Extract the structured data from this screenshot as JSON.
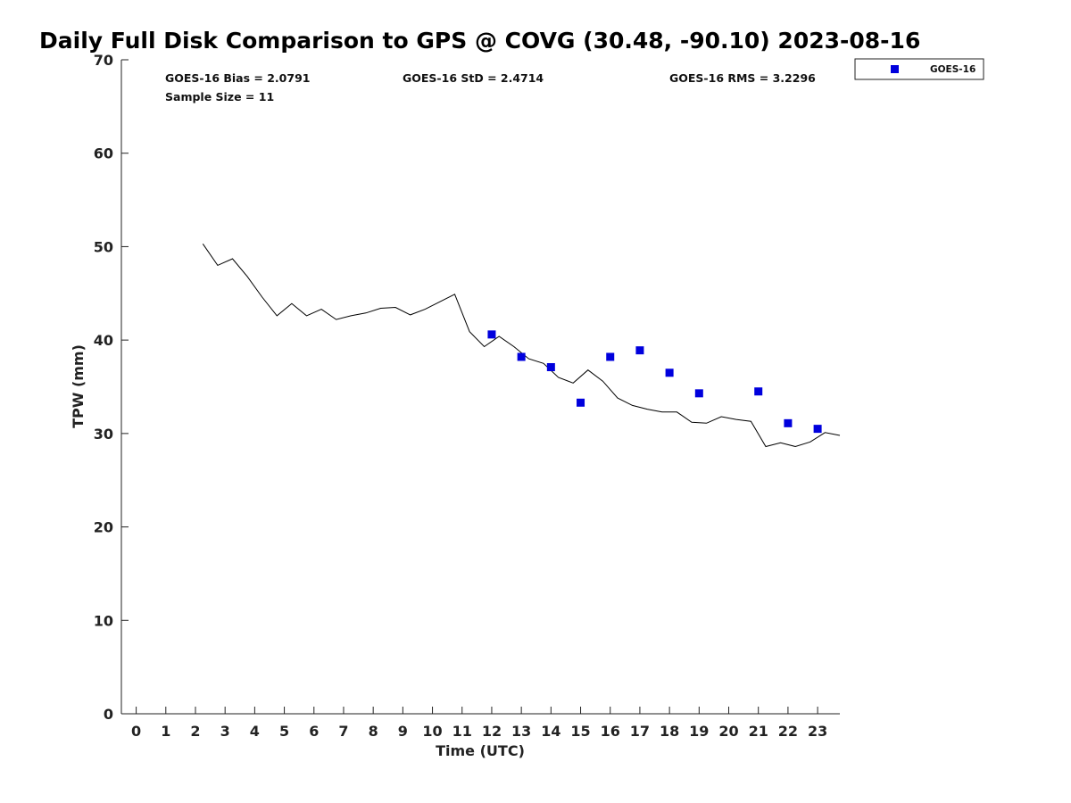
{
  "chart_data": {
    "type": "scatter",
    "title": "Daily Full Disk Comparison to GPS @ COVG (30.48, -90.10) 2023-08-16",
    "xlabel": "Time (UTC)",
    "ylabel": "TPW (mm)",
    "xlim": [
      -0.5,
      23.75
    ],
    "ylim": [
      0,
      70
    ],
    "x_ticks": [
      0,
      1,
      2,
      3,
      4,
      5,
      6,
      7,
      8,
      9,
      10,
      11,
      12,
      13,
      14,
      15,
      16,
      17,
      18,
      19,
      20,
      21,
      22,
      23
    ],
    "y_ticks": [
      0,
      10,
      20,
      30,
      40,
      50,
      60,
      70
    ],
    "grid": false,
    "legend_position": "top-right",
    "stats": {
      "bias": "GOES-16 Bias = 2.0791",
      "std": "GOES-16 StD = 2.4714",
      "rms": "GOES-16 RMS = 3.2296",
      "sample_size": "Sample Size = 11"
    },
    "series": [
      {
        "name": "GOES-16",
        "type": "scatter",
        "marker": "square",
        "color": "#0000dd",
        "x": [
          12,
          13,
          14,
          15,
          16,
          17,
          18,
          19,
          21,
          22,
          23
        ],
        "y": [
          40.6,
          38.2,
          37.1,
          33.3,
          38.2,
          38.9,
          36.5,
          34.3,
          34.5,
          31.1,
          30.5
        ]
      },
      {
        "type": "line",
        "color": "#000000",
        "x": [
          2.25,
          2.75,
          3.25,
          3.75,
          4.25,
          4.75,
          5.25,
          5.75,
          6.25,
          6.75,
          7.25,
          7.75,
          8.25,
          8.75,
          9.25,
          9.75,
          10.25,
          10.75,
          11.25,
          11.75,
          12.25,
          12.75,
          13.25,
          13.75,
          14.25,
          14.75,
          15.25,
          15.75,
          16.25,
          16.75,
          17.25,
          17.75,
          18.25,
          18.75,
          19.25,
          19.75,
          20.25,
          20.75,
          21.25,
          21.75,
          22.25,
          22.75,
          23.25,
          23.75
        ],
        "y": [
          50.3,
          48.0,
          48.7,
          46.8,
          44.6,
          42.6,
          43.9,
          42.6,
          43.3,
          42.2,
          42.6,
          42.9,
          43.4,
          43.5,
          42.7,
          43.3,
          44.1,
          44.9,
          40.9,
          39.3,
          40.4,
          39.3,
          38.0,
          37.5,
          36.0,
          35.4,
          36.8,
          35.6,
          33.8,
          33.0,
          32.6,
          32.3,
          32.3,
          31.2,
          31.1,
          31.8,
          31.5,
          31.3,
          28.6,
          29.0,
          28.6,
          29.1,
          30.1,
          29.8
        ]
      }
    ]
  }
}
